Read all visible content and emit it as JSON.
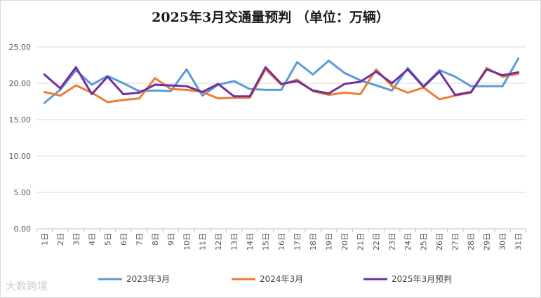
{
  "chart_data": {
    "type": "line",
    "title": "2025年3月交通量预判   （单位：万辆）",
    "xlabel": "",
    "ylabel": "",
    "ylim": [
      0,
      25
    ],
    "yticks": [
      "0.00",
      "5.00",
      "10.00",
      "15.00",
      "20.00",
      "25.00"
    ],
    "categories": [
      "1日",
      "2日",
      "3日",
      "4日",
      "5日",
      "6日",
      "7日",
      "8日",
      "9日",
      "10日",
      "11日",
      "12日",
      "13日",
      "14日",
      "15日",
      "16日",
      "17日",
      "18日",
      "19日",
      "20日",
      "21日",
      "22日",
      "23日",
      "24日",
      "25日",
      "26日",
      "27日",
      "28日",
      "29日",
      "30日",
      "31日"
    ],
    "legend_position": "bottom",
    "series": [
      {
        "name": "2023年3月",
        "color": "#5b9bd5",
        "values": [
          17.3,
          19.1,
          21.8,
          19.8,
          21.0,
          20.0,
          18.9,
          19.0,
          18.9,
          21.9,
          18.3,
          19.8,
          20.3,
          19.2,
          19.1,
          19.1,
          22.9,
          21.2,
          23.1,
          21.4,
          20.4,
          19.7,
          19.0,
          22.1,
          19.6,
          21.8,
          20.9,
          19.6,
          19.6,
          19.6,
          23.4
        ]
      },
      {
        "name": "2024年3月",
        "color": "#ed7d31",
        "values": [
          18.8,
          18.3,
          19.7,
          18.7,
          17.4,
          17.7,
          17.9,
          20.7,
          19.2,
          19.1,
          18.8,
          17.9,
          18.0,
          18.0,
          21.9,
          19.8,
          20.5,
          18.9,
          18.4,
          18.7,
          18.5,
          21.9,
          19.6,
          18.7,
          19.4,
          17.8,
          18.3,
          18.7,
          22.1,
          20.9,
          21.3
        ]
      },
      {
        "name": "2025年3月预判",
        "color": "#7030a0",
        "values": [
          21.2,
          19.3,
          22.2,
          18.5,
          20.9,
          18.5,
          18.7,
          19.8,
          19.7,
          19.6,
          18.8,
          19.9,
          18.2,
          18.2,
          22.2,
          19.9,
          20.3,
          19.0,
          18.6,
          19.9,
          20.2,
          21.6,
          20.0,
          21.9,
          19.5,
          21.6,
          18.4,
          18.8,
          21.9,
          21.1,
          21.5
        ]
      }
    ]
  },
  "watermark": "大数跨境"
}
